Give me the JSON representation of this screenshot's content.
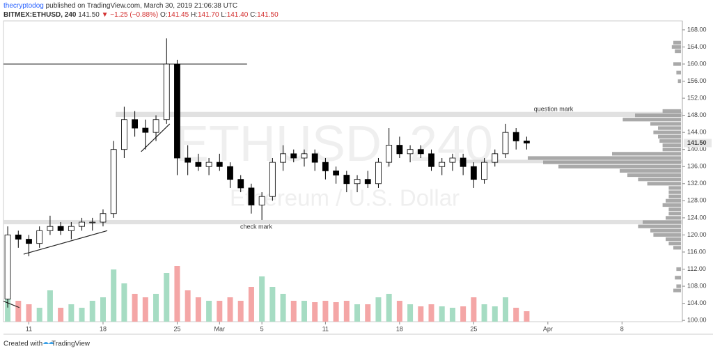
{
  "header": {
    "author": "thecryptodog",
    "published": "published on TradingView.com, March 30, 2019 21:06:38 UTC",
    "symbol": "BITMEX:ETHUSD, 240",
    "last": "141.50",
    "change": "▼ −1.25 (−0.88%)",
    "ohlc": [
      {
        "key": "O:",
        "value": "141.45"
      },
      {
        "key": "H:",
        "value": "141.70"
      },
      {
        "key": "L:",
        "value": "141.40"
      },
      {
        "key": "C:",
        "value": "141.50"
      }
    ]
  },
  "chart_data": {
    "type": "candlestick",
    "watermark": "ETHUSD, 240",
    "watermark_subtitle": "Ethereum / U.S. Dollar",
    "x": [
      9,
      10,
      11,
      12,
      13,
      14,
      15,
      16,
      17,
      18,
      19,
      20,
      21,
      22,
      23,
      24,
      25,
      26,
      27,
      28,
      29,
      30,
      31,
      32,
      33,
      34,
      35,
      36,
      37,
      38,
      39,
      40,
      41,
      42,
      43,
      44,
      45,
      46,
      47,
      48,
      49,
      50,
      51,
      52,
      53,
      54,
      55,
      56,
      57,
      58
    ],
    "open": [
      105,
      120,
      119,
      118,
      121,
      122,
      121,
      122,
      123,
      123,
      125,
      140,
      147,
      145,
      144,
      147,
      160,
      138,
      137,
      136,
      137,
      136,
      133,
      131,
      127,
      129,
      137,
      139,
      138,
      139,
      137,
      135,
      134,
      132,
      133,
      132,
      137,
      141,
      139,
      140,
      139,
      136,
      137,
      138,
      136,
      133,
      137,
      139,
      144,
      142
    ],
    "high": [
      122,
      121,
      120,
      122,
      124.5,
      123,
      123,
      124,
      124,
      126,
      142,
      150,
      149,
      147,
      148,
      166,
      161,
      141,
      139,
      138,
      139,
      137,
      134,
      132,
      130,
      138,
      141,
      140,
      140,
      140,
      138,
      136,
      135,
      134,
      135,
      138,
      145,
      143,
      141,
      141,
      140,
      138,
      139,
      139,
      137,
      138,
      140,
      146,
      145,
      143
    ],
    "low": [
      103,
      117,
      115,
      117,
      120,
      120,
      119,
      121,
      121,
      122,
      124,
      138,
      143,
      140,
      142,
      146,
      134,
      134,
      135,
      134,
      135,
      131,
      130,
      125,
      123.5,
      128,
      135,
      137,
      136,
      135,
      133,
      132,
      130,
      130,
      131,
      131,
      136,
      138,
      137,
      138,
      135,
      134,
      135,
      134,
      131,
      132,
      136,
      138,
      140,
      140
    ],
    "close": [
      120,
      119,
      118,
      121,
      122,
      121,
      122,
      123,
      123,
      125,
      140,
      147,
      145,
      144,
      147,
      160,
      138,
      137,
      136,
      137,
      136,
      133,
      131,
      127,
      129,
      137,
      139,
      138,
      139,
      137,
      135,
      134,
      132,
      133,
      132,
      137,
      141,
      139,
      140,
      139,
      136,
      137,
      138,
      136,
      133,
      137,
      139,
      144,
      142,
      141.5
    ],
    "volume": [
      60,
      30,
      25,
      20,
      45,
      20,
      25,
      20,
      30,
      35,
      75,
      55,
      40,
      35,
      40,
      70,
      80,
      45,
      35,
      30,
      30,
      35,
      30,
      50,
      65,
      50,
      40,
      30,
      30,
      28,
      30,
      28,
      30,
      25,
      25,
      35,
      40,
      30,
      25,
      22,
      25,
      22,
      20,
      22,
      35,
      25,
      22,
      35,
      20,
      15
    ],
    "up_color": "#ffffff",
    "down_color": "#000000",
    "volume_up_color": "#a6dcc3",
    "volume_down_color": "#f4a6a6",
    "xlim": [
      8.6,
      72.7
    ],
    "ylim": [
      99.7,
      170.1
    ],
    "y2lim": [
      0,
      100
    ],
    "xticks": [
      {
        "value": 11,
        "label": "11"
      },
      {
        "value": 18,
        "label": "18"
      },
      {
        "value": 25,
        "label": "25"
      },
      {
        "value": 29,
        "label": "Mar"
      },
      {
        "value": 33,
        "label": "5"
      },
      {
        "value": 39,
        "label": "11"
      },
      {
        "value": 46,
        "label": "18"
      },
      {
        "value": 53,
        "label": "25"
      },
      {
        "value": 60,
        "label": "Apr"
      },
      {
        "value": 67,
        "label": "8"
      }
    ],
    "yticks": [
      {
        "value": 100,
        "label": "100.00"
      },
      {
        "value": 104,
        "label": "104.00"
      },
      {
        "value": 108,
        "label": "108.00"
      },
      {
        "value": 112,
        "label": "112.00"
      },
      {
        "value": 116,
        "label": "116.00"
      },
      {
        "value": 120,
        "label": "120.00"
      },
      {
        "value": 124,
        "label": "124.00"
      },
      {
        "value": 128,
        "label": "128.00"
      },
      {
        "value": 132,
        "label": "132.00"
      },
      {
        "value": 136,
        "label": "136.00"
      },
      {
        "value": 140,
        "label": "140.00"
      },
      {
        "value": 144,
        "label": "144.00"
      },
      {
        "value": 148,
        "label": "148.00"
      },
      {
        "value": 152,
        "label": "152.00"
      },
      {
        "value": 156,
        "label": "156.00"
      },
      {
        "value": 160,
        "label": "160.00"
      },
      {
        "value": 164,
        "label": "164.00"
      },
      {
        "value": 168,
        "label": "168.00"
      }
    ],
    "last_price": {
      "value": 141.5,
      "label": "141.50"
    },
    "grid": false,
    "profile": {
      "prices": [
        165,
        164,
        163,
        160,
        158,
        156,
        149,
        148,
        147,
        146,
        145,
        144,
        143,
        142,
        141,
        140,
        139,
        138,
        137,
        136,
        135,
        134,
        133,
        132,
        131,
        130,
        129,
        128,
        127,
        126,
        125,
        124,
        123,
        122,
        121,
        120,
        119,
        118,
        117,
        112,
        110,
        108,
        107
      ],
      "values": [
        5,
        6,
        4,
        5,
        3,
        2,
        12,
        30,
        38,
        20,
        15,
        18,
        15,
        14,
        12,
        12,
        45,
        100,
        90,
        80,
        40,
        35,
        28,
        22,
        8,
        8,
        8,
        10,
        12,
        8,
        8,
        10,
        25,
        28,
        20,
        18,
        10,
        8,
        5,
        3,
        4,
        3,
        5
      ],
      "color": "#9a9a9a"
    },
    "hlines": [
      {
        "price": 160,
        "x": [
          8.6,
          31.6
        ]
      }
    ],
    "zones": [
      {
        "low": 147.6,
        "high": 148.8,
        "x": [
          19.2,
          72.7
        ]
      },
      {
        "low": 122.5,
        "high": 123.5,
        "x": [
          8.6,
          72.7
        ]
      },
      {
        "low": 136.8,
        "high": 137.6,
        "x": [
          51.6,
          72.7
        ]
      }
    ],
    "trendlines": [
      {
        "x": [
          10.5,
          18.4
        ],
        "y": [
          115.5,
          121
        ]
      },
      {
        "x": [
          21.6,
          24.3
        ],
        "y": [
          139.5,
          146
        ]
      },
      {
        "x": [
          8.6,
          10.1
        ],
        "y": [
          104.5,
          103
        ]
      }
    ],
    "annotations": [
      "question mark",
      "check mark"
    ]
  },
  "footer": {
    "created": "Created with",
    "brand": "TradingView"
  }
}
